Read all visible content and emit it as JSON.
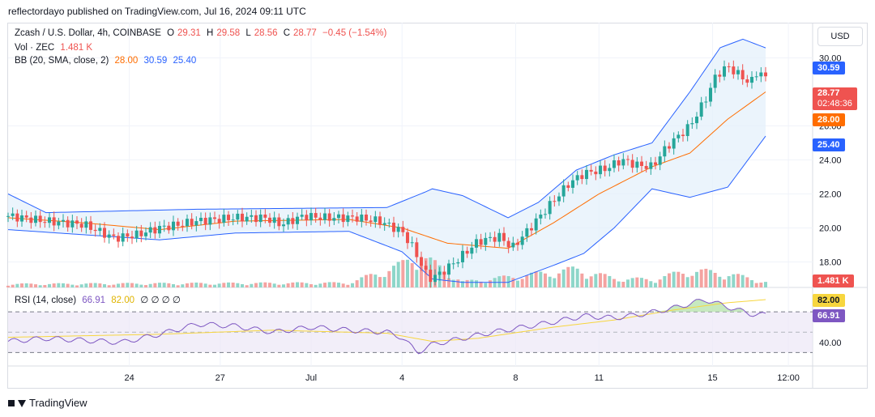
{
  "header": {
    "published": "reflectordayo published on TradingView.com, Jul 16, 2024 09:11 UTC"
  },
  "legend": {
    "symbol": "Zcash / U.S. Dollar, 4h, COINBASE",
    "o_label": "O",
    "o_val": "29.31",
    "h_label": "H",
    "h_val": "29.58",
    "l_label": "L",
    "l_val": "28.56",
    "c_label": "C",
    "c_val": "28.77",
    "change": "−0.45 (−1.54%)",
    "vol_label": "Vol · ZEC",
    "vol_val": "1.481 K",
    "bb_label": "BB (20, SMA, close, 2)",
    "bb_mid": "28.00",
    "bb_up": "30.59",
    "bb_low": "25.40"
  },
  "rsi_legend": {
    "label": "RSI (14, close)",
    "v1": "66.91",
    "v2": "82.00",
    "ph": "∅ ∅ ∅ ∅"
  },
  "currency": "USD",
  "tags": {
    "upper": "30.59",
    "price": "28.77",
    "countdown": "02:48:36",
    "mid": "28.00",
    "lower": "25.40",
    "volume": "1.481 K",
    "rsi_ma": "82.00",
    "rsi": "66.91"
  },
  "colors": {
    "up": "#26a69a",
    "down": "#ef5350",
    "bb_band": "#2962ff",
    "bb_mid": "#ff6d00",
    "rsi": "#7e57c2",
    "rsi_ma": "#f7d63f",
    "fill": "#e3f0fb"
  },
  "footer": {
    "brand": "TradingView"
  },
  "chart_data": {
    "type": "candlestick",
    "symbol": "Zcash / U.S. Dollar",
    "interval": "4h",
    "exchange": "COINBASE",
    "y_axis_ticks": [
      18.0,
      20.0,
      22.0,
      24.0,
      26.0,
      30.0
    ],
    "ylim": [
      16.5,
      31.5
    ],
    "rsi_ticks": [
      40.0
    ],
    "rsi_levels": [
      70,
      30
    ],
    "x_tick_labels": [
      {
        "label": "24",
        "pos": 0.16
      },
      {
        "label": "27",
        "pos": 0.28
      },
      {
        "label": "Jul",
        "pos": 0.4
      },
      {
        "label": "4",
        "pos": 0.52
      },
      {
        "label": "8",
        "pos": 0.67
      },
      {
        "label": "11",
        "pos": 0.78
      },
      {
        "label": "15",
        "pos": 0.93
      },
      {
        "label": "12:00",
        "pos": 1.03
      }
    ],
    "price_keypoints": [
      [
        0,
        20.7
      ],
      [
        0.05,
        20.4
      ],
      [
        0.1,
        20.2
      ],
      [
        0.14,
        19.4
      ],
      [
        0.17,
        19.6
      ],
      [
        0.2,
        20.0
      ],
      [
        0.25,
        20.4
      ],
      [
        0.3,
        20.6
      ],
      [
        0.34,
        20.6
      ],
      [
        0.36,
        20.2
      ],
      [
        0.39,
        20.7
      ],
      [
        0.42,
        20.6
      ],
      [
        0.46,
        20.6
      ],
      [
        0.49,
        20.4
      ],
      [
        0.52,
        19.8
      ],
      [
        0.535,
        18.8
      ],
      [
        0.555,
        17.0
      ],
      [
        0.57,
        17.3
      ],
      [
        0.59,
        18.0
      ],
      [
        0.62,
        19.2
      ],
      [
        0.65,
        19.5
      ],
      [
        0.665,
        18.8
      ],
      [
        0.685,
        19.8
      ],
      [
        0.72,
        21.6
      ],
      [
        0.74,
        22.6
      ],
      [
        0.76,
        23.2
      ],
      [
        0.79,
        23.5
      ],
      [
        0.81,
        24.0
      ],
      [
        0.83,
        23.7
      ],
      [
        0.85,
        23.6
      ],
      [
        0.87,
        24.8
      ],
      [
        0.9,
        26.0
      ],
      [
        0.92,
        27.5
      ],
      [
        0.935,
        29.0
      ],
      [
        0.95,
        29.5
      ],
      [
        0.965,
        29.0
      ],
      [
        0.98,
        28.5
      ],
      [
        0.99,
        29.3
      ],
      [
        1.0,
        28.77
      ]
    ],
    "bb": {
      "upper_keypoints": [
        [
          0,
          22.0
        ],
        [
          0.05,
          20.9
        ],
        [
          0.25,
          21.1
        ],
        [
          0.5,
          21.2
        ],
        [
          0.55,
          22.1
        ],
        [
          0.56,
          22.3
        ],
        [
          0.6,
          21.9
        ],
        [
          0.66,
          20.6
        ],
        [
          0.7,
          21.5
        ],
        [
          0.75,
          23.4
        ],
        [
          0.8,
          24.3
        ],
        [
          0.85,
          25.0
        ],
        [
          0.9,
          28.0
        ],
        [
          0.94,
          30.6
        ],
        [
          0.97,
          31.1
        ],
        [
          1.0,
          30.59
        ]
      ],
      "mid_keypoints": [
        [
          0,
          20.6
        ],
        [
          0.1,
          20.3
        ],
        [
          0.2,
          19.9
        ],
        [
          0.3,
          20.4
        ],
        [
          0.45,
          20.5
        ],
        [
          0.52,
          20.0
        ],
        [
          0.58,
          19.1
        ],
        [
          0.66,
          18.8
        ],
        [
          0.72,
          20.3
        ],
        [
          0.78,
          22.0
        ],
        [
          0.85,
          23.6
        ],
        [
          0.9,
          24.4
        ],
        [
          0.95,
          26.4
        ],
        [
          1.0,
          28.0
        ]
      ],
      "lower_keypoints": [
        [
          0,
          19.9
        ],
        [
          0.1,
          19.6
        ],
        [
          0.2,
          19.3
        ],
        [
          0.3,
          19.7
        ],
        [
          0.45,
          19.8
        ],
        [
          0.52,
          18.6
        ],
        [
          0.56,
          17.0
        ],
        [
          0.6,
          16.8
        ],
        [
          0.66,
          16.8
        ],
        [
          0.72,
          17.8
        ],
        [
          0.76,
          18.5
        ],
        [
          0.8,
          20.0
        ],
        [
          0.85,
          22.3
        ],
        [
          0.9,
          21.8
        ],
        [
          0.95,
          22.4
        ],
        [
          1.0,
          25.4
        ]
      ]
    },
    "volume_keypoints": [
      [
        0,
        0.3
      ],
      [
        0.2,
        0.35
      ],
      [
        0.45,
        0.4
      ],
      [
        0.52,
        2.0
      ],
      [
        0.54,
        3.0
      ],
      [
        0.6,
        0.5
      ],
      [
        0.7,
        1.2
      ],
      [
        0.75,
        1.6
      ],
      [
        0.8,
        0.8
      ],
      [
        0.85,
        0.7
      ],
      [
        0.9,
        1.5
      ],
      [
        0.95,
        1.2
      ],
      [
        1.0,
        0.5
      ]
    ],
    "rsi_keypoints": [
      [
        0,
        41
      ],
      [
        0.05,
        44
      ],
      [
        0.1,
        42
      ],
      [
        0.15,
        40
      ],
      [
        0.2,
        48
      ],
      [
        0.25,
        58
      ],
      [
        0.3,
        56
      ],
      [
        0.35,
        50
      ],
      [
        0.4,
        55
      ],
      [
        0.45,
        52
      ],
      [
        0.5,
        50
      ],
      [
        0.52,
        45
      ],
      [
        0.54,
        30
      ],
      [
        0.56,
        38
      ],
      [
        0.6,
        44
      ],
      [
        0.64,
        50
      ],
      [
        0.68,
        55
      ],
      [
        0.72,
        60
      ],
      [
        0.76,
        66
      ],
      [
        0.8,
        64
      ],
      [
        0.84,
        68
      ],
      [
        0.88,
        74
      ],
      [
        0.92,
        82
      ],
      [
        0.95,
        75
      ],
      [
        0.98,
        68
      ],
      [
        1.0,
        66.91
      ]
    ],
    "rsi_ma_keypoints": [
      [
        0,
        45
      ],
      [
        0.2,
        48
      ],
      [
        0.35,
        52
      ],
      [
        0.5,
        49
      ],
      [
        0.56,
        41
      ],
      [
        0.62,
        44
      ],
      [
        0.72,
        55
      ],
      [
        0.8,
        62
      ],
      [
        0.88,
        72
      ],
      [
        0.95,
        79
      ],
      [
        1.0,
        82
      ]
    ]
  }
}
